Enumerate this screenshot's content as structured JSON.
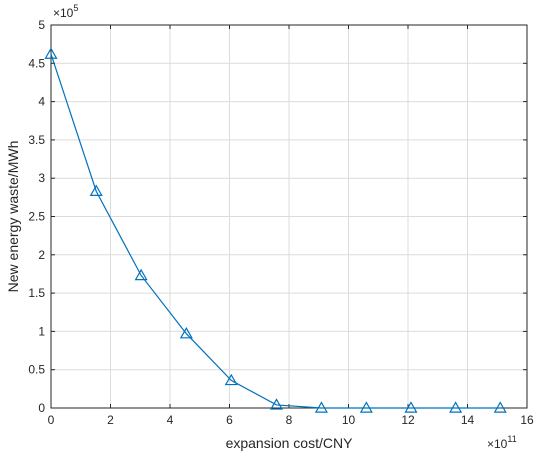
{
  "chart_data": {
    "type": "line",
    "title": "",
    "xlabel": "expansion cost/CNY",
    "ylabel": "New energy waste/MWh",
    "x_exponent": "×10",
    "x_exponent_power": "11",
    "y_exponent": "×10",
    "y_exponent_power": "5",
    "xlim": [
      0,
      16
    ],
    "ylim": [
      0,
      5
    ],
    "x_ticks": [
      0,
      2,
      4,
      6,
      8,
      10,
      12,
      14,
      16
    ],
    "y_ticks": [
      0,
      0.5,
      1,
      1.5,
      2,
      2.5,
      3,
      3.5,
      4,
      4.5,
      5
    ],
    "x_tick_labels": [
      "0",
      "2",
      "4",
      "6",
      "8",
      "10",
      "12",
      "14",
      "16"
    ],
    "y_tick_labels": [
      "0",
      "0.5",
      "1",
      "1.5",
      "2",
      "2.5",
      "3",
      "3.5",
      "4",
      "4.5",
      "5"
    ],
    "grid": true,
    "marker": "triangle",
    "color": "#0072BD",
    "series": [
      {
        "x": [
          0,
          1.52,
          3.03,
          4.55,
          6.06,
          7.58,
          9.09,
          10.6,
          12.1,
          13.6,
          15.1
        ],
        "y": [
          4.62,
          2.83,
          1.73,
          0.97,
          0.36,
          0.04,
          0.0,
          0.0,
          0.0,
          0.0,
          0.0
        ]
      }
    ]
  }
}
